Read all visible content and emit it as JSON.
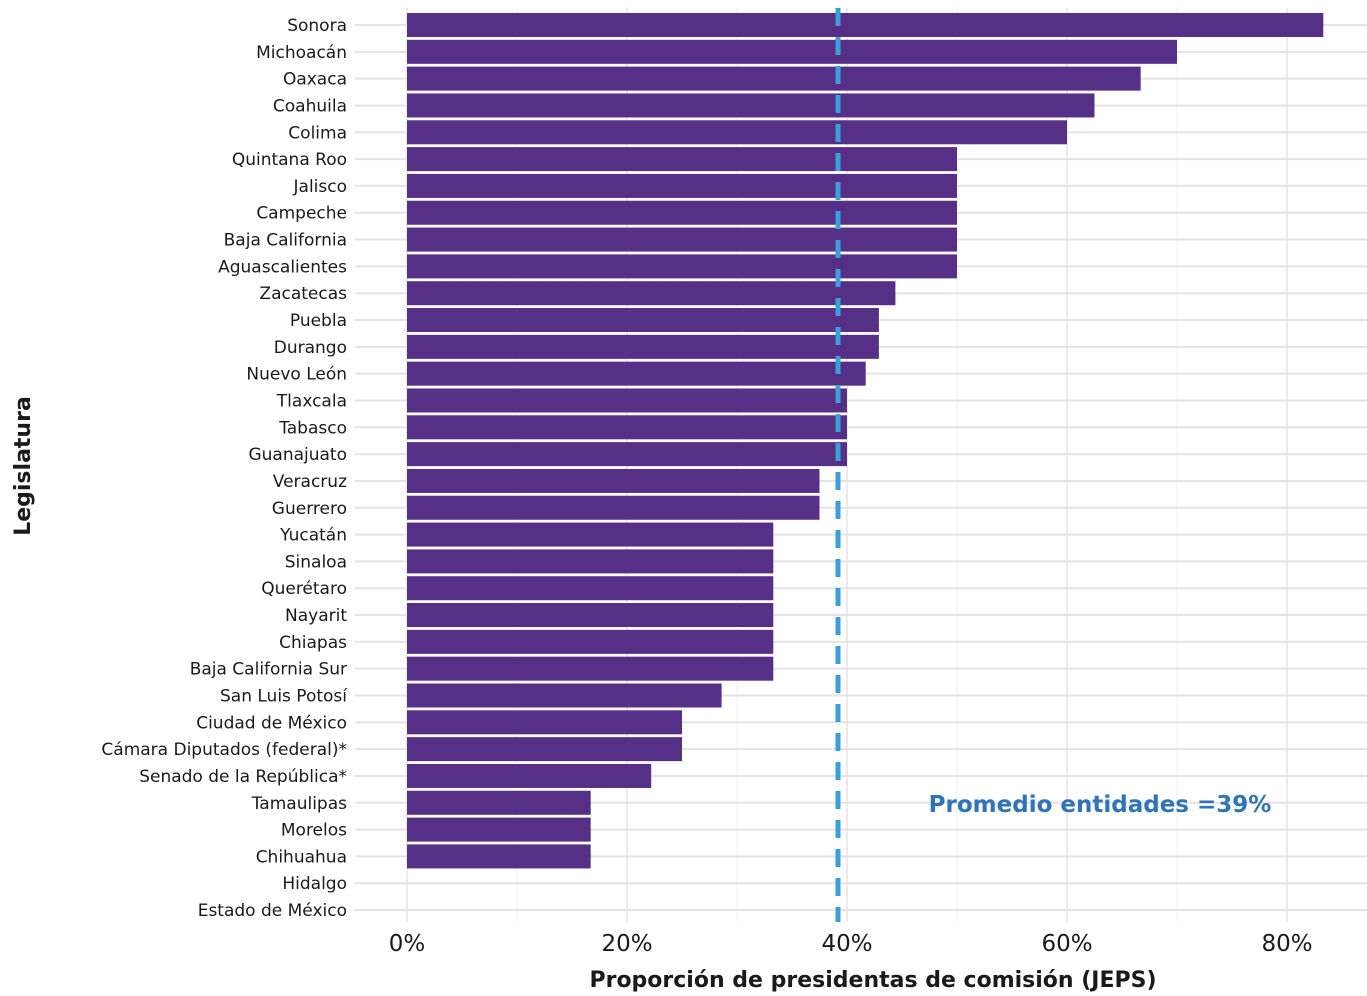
{
  "chart_data": {
    "type": "bar",
    "orientation": "horizontal",
    "xlabel": "Proporción de presidentas de comisión (JEPS)",
    "ylabel": "Legislatura",
    "xlim": [
      0,
      0.87
    ],
    "xticks": [
      0,
      0.2,
      0.4,
      0.6,
      0.8
    ],
    "xtick_labels": [
      "0%",
      "20%",
      "40%",
      "60%",
      "80%"
    ],
    "grid": true,
    "bar_color": "#562f87",
    "reference_line": {
      "value": 0.39,
      "color": "#3d9fd9",
      "style": "dashed",
      "label": "Promedio entidades =39%",
      "label_color": "#2f73b8"
    },
    "categories": [
      "Sonora",
      "Michoacán",
      "Oaxaca",
      "Coahuila",
      "Colima",
      "Quintana Roo",
      "Jalisco",
      "Campeche",
      "Baja California",
      "Aguascalientes",
      "Zacatecas",
      "Puebla",
      "Durango",
      "Nuevo León",
      "Tlaxcala",
      "Tabasco",
      "Guanajuato",
      "Veracruz",
      "Guerrero",
      "Yucatán",
      "Sinaloa",
      "Querétaro",
      "Nayarit",
      "Chiapas",
      "Baja California Sur",
      "San Luis Potosí",
      "Ciudad de México",
      "Cámara Diputados (federal)*",
      "Senado de la República*",
      "Tamaulipas",
      "Morelos",
      "Chihuahua",
      "Hidalgo",
      "Estado de México"
    ],
    "values": [
      0.833,
      0.7,
      0.667,
      0.625,
      0.6,
      0.5,
      0.5,
      0.5,
      0.5,
      0.5,
      0.444,
      0.429,
      0.429,
      0.417,
      0.4,
      0.4,
      0.4,
      0.375,
      0.375,
      0.333,
      0.333,
      0.333,
      0.333,
      0.333,
      0.333,
      0.286,
      0.25,
      0.25,
      0.222,
      0.167,
      0.167,
      0.167,
      0,
      0
    ]
  }
}
